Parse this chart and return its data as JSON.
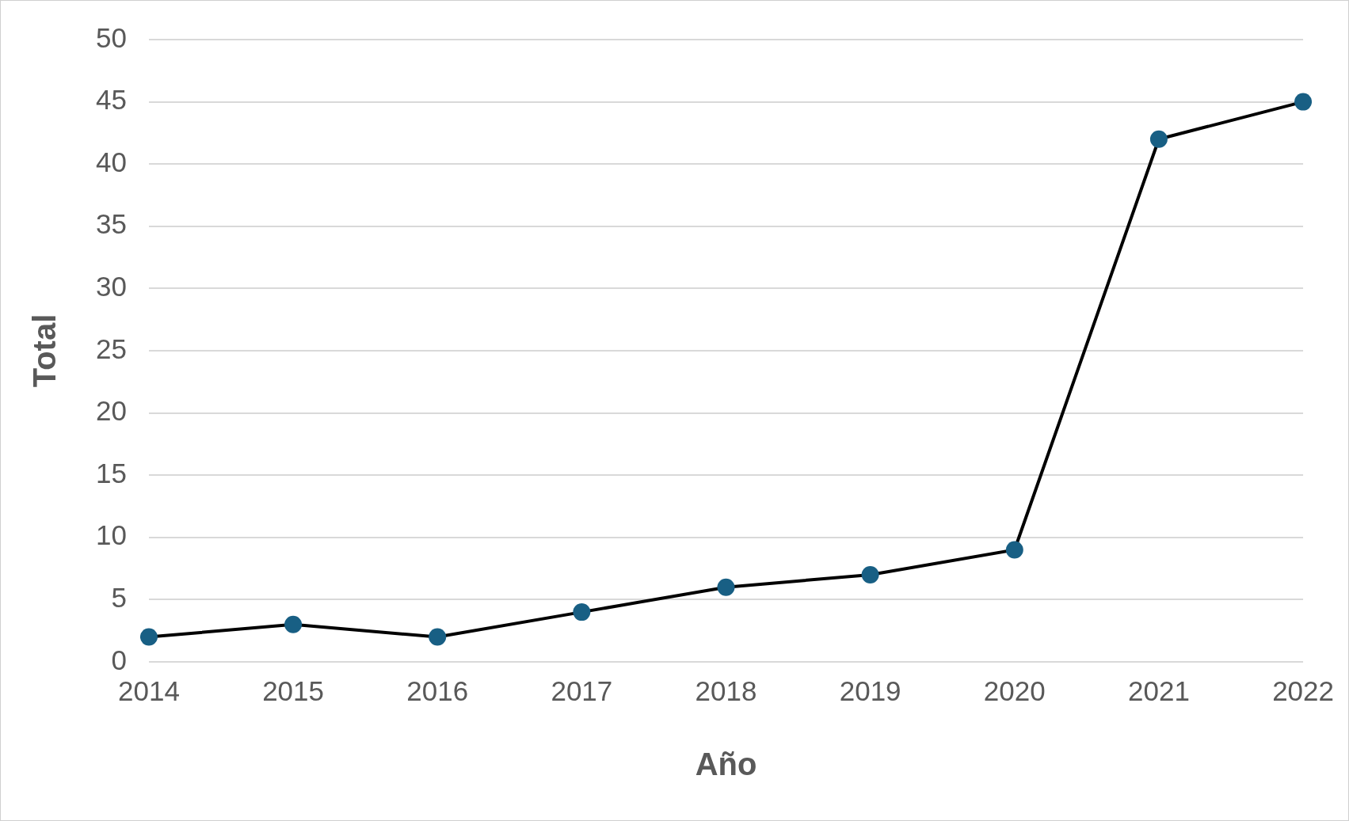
{
  "chart_data": {
    "type": "line",
    "xlabel": "Año",
    "ylabel": "Total",
    "categories": [
      "2014",
      "2015",
      "2016",
      "2017",
      "2018",
      "2019",
      "2020",
      "2021",
      "2022"
    ],
    "series": [
      {
        "color": "#000000",
        "colors": [
          "#185f84",
          "#185f84",
          "#185f84",
          "#185f84",
          "#185f84",
          "#185f84",
          "#185f84",
          "#185f84",
          "#185f84"
        ],
        "values": [
          2,
          3,
          2,
          4,
          6,
          7,
          9,
          42,
          45
        ]
      }
    ],
    "ylim": [
      0,
      50
    ],
    "yticks": [
      0,
      5,
      10,
      15,
      20,
      25,
      30,
      35,
      40,
      45,
      50
    ],
    "grid": "y",
    "legend": false,
    "marker": "circle",
    "line_style": "solid"
  }
}
